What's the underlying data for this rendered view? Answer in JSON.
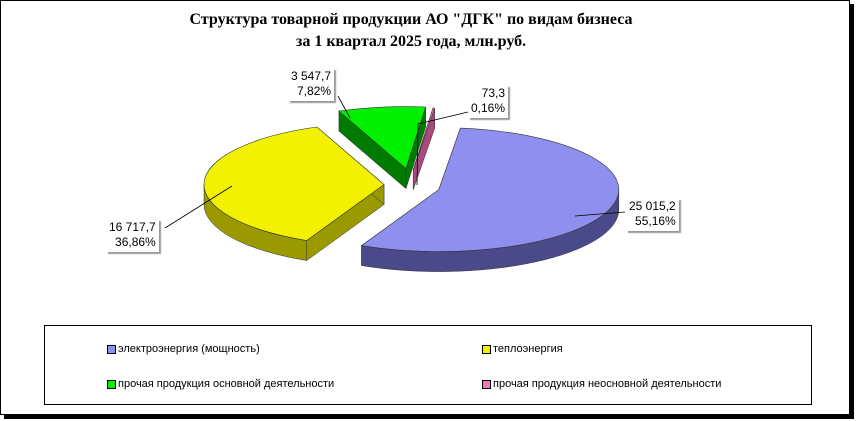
{
  "chart_data": {
    "type": "pie",
    "title": [
      "Структура товарной продукции АО \"ДГК\" по видам  бизнеса",
      "за 1 квартал 2025 года, млн.руб."
    ],
    "slices": [
      {
        "name": "электроэнергия  (мощность)",
        "value": 25015.2,
        "value_label": "25 015,2",
        "percent_label": "55,16%",
        "color": "#8f8fef",
        "dark": "#4a4a8a"
      },
      {
        "name": "теплоэнергия",
        "value": 16717.7,
        "value_label": "16 717,7",
        "percent_label": "36,86%",
        "color": "#f2f200",
        "dark": "#9a9a00"
      },
      {
        "name": "прочая продукция  основной деятельности",
        "value": 3547.7,
        "value_label": "3 547,7",
        "percent_label": "7,82%",
        "color": "#00f000",
        "dark": "#007a00"
      },
      {
        "name": "прочая продукция  неосновной деятельности",
        "value": 73.3,
        "value_label": "73,3",
        "percent_label": "0,16%",
        "color": "#f07ab4",
        "dark": "#a84a7c"
      }
    ],
    "legend_position": "bottom"
  }
}
